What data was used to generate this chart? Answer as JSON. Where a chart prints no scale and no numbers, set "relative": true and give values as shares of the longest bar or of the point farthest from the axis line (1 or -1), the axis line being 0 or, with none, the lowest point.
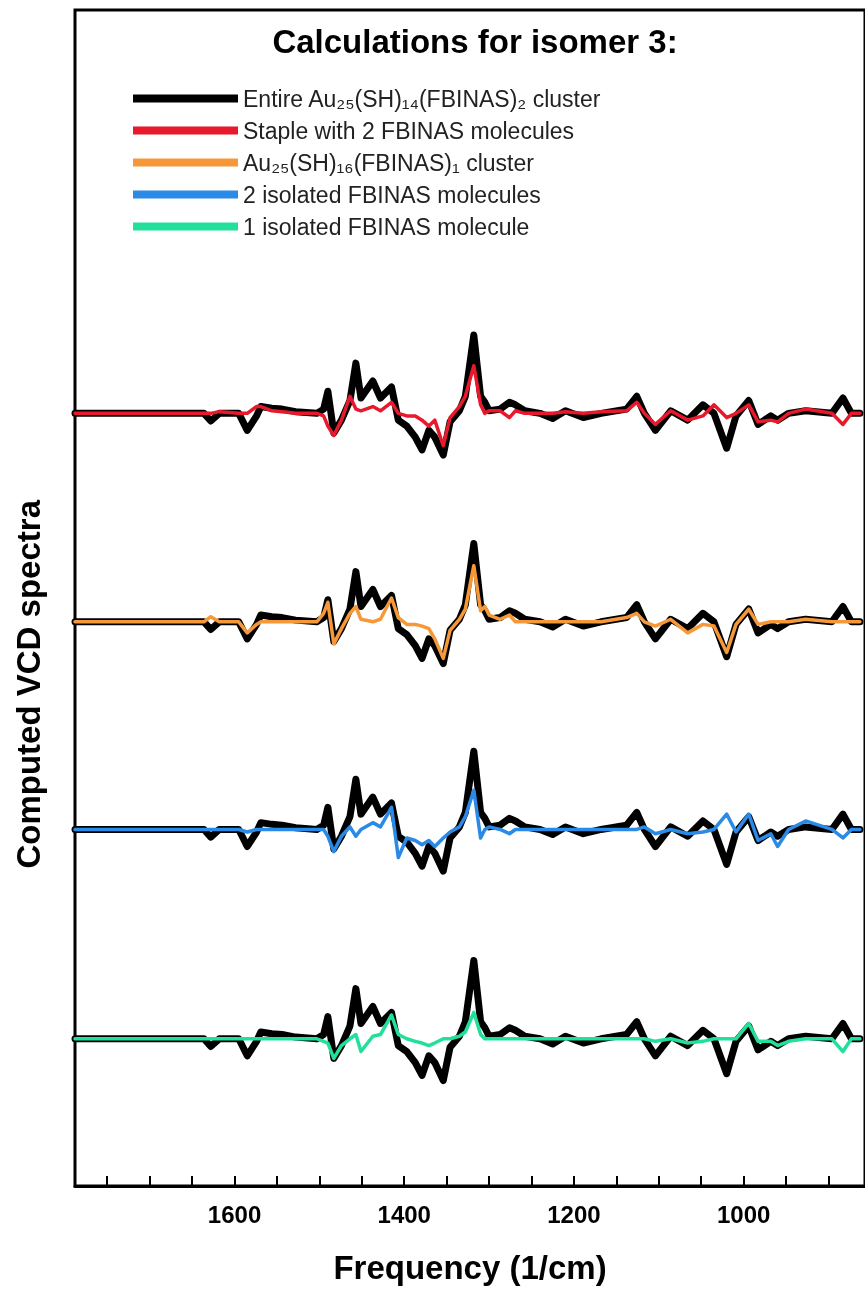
{
  "chart_data": {
    "type": "line",
    "relative": true,
    "legend_title": "Calculations for isomer 3:",
    "xlabel": "Frequency (1/cm)",
    "ylabel": "Computed VCD spectra",
    "legend": "top",
    "xlim": [
      1788,
      857
    ],
    "xticks": [
      {
        "value": 1750,
        "label": null
      },
      {
        "value": 1700,
        "label": null
      },
      {
        "value": 1650,
        "label": null
      },
      1600,
      {
        "value": 1550,
        "label": null
      },
      {
        "value": 1500,
        "label": null
      },
      {
        "value": 1450,
        "label": null
      },
      1400,
      {
        "value": 1350,
        "label": null
      },
      {
        "value": 1300,
        "label": null
      },
      {
        "value": 1250,
        "label": null
      },
      1200,
      {
        "value": 1150,
        "label": null
      },
      {
        "value": 1100,
        "label": null
      },
      {
        "value": 1050,
        "label": null
      },
      1000,
      {
        "value": 950,
        "label": null
      },
      {
        "value": 900,
        "label": null
      }
    ],
    "x": [
      1788,
      1667,
      1636,
      1628,
      1618,
      1595,
      1585,
      1574,
      1569,
      1556,
      1544,
      1528,
      1503,
      1495,
      1490,
      1483,
      1474,
      1464,
      1457,
      1451,
      1437,
      1428,
      1415,
      1407,
      1397,
      1387,
      1379,
      1371,
      1364,
      1354,
      1346,
      1335,
      1328,
      1318,
      1310,
      1305,
      1300,
      1287,
      1276,
      1269,
      1258,
      1240,
      1225,
      1210,
      1189,
      1168,
      1138,
      1126,
      1117,
      1104,
      1086,
      1066,
      1048,
      1035,
      1020,
      1009,
      994,
      983,
      968,
      960,
      947,
      927,
      896,
      883,
      873,
      863
    ],
    "series": [
      {
        "name": "Entire Au₂₅(SH)₁₄(FBINAS)₂ cluster",
        "color": "#000000",
        "values": [
          0.908,
          0.908,
          0.908,
          0.899,
          0.908,
          0.908,
          0.888,
          0.905,
          0.916,
          0.914,
          0.913,
          0.91,
          0.908,
          0.913,
          0.934,
          0.885,
          0.9,
          0.923,
          0.967,
          0.926,
          0.946,
          0.926,
          0.939,
          0.9,
          0.893,
          0.88,
          0.865,
          0.888,
          0.88,
          0.859,
          0.898,
          0.911,
          0.928,
          1.0,
          0.928,
          0.921,
          0.911,
          0.913,
          0.921,
          0.918,
          0.911,
          0.908,
          0.902,
          0.911,
          0.903,
          0.908,
          0.913,
          0.928,
          0.908,
          0.888,
          0.911,
          0.9,
          0.918,
          0.908,
          0.867,
          0.905,
          0.923,
          0.895,
          0.905,
          0.9,
          0.908,
          0.911,
          0.908,
          0.926,
          0.908,
          0.908
        ]
      },
      {
        "color": "#000000",
        "values": [
          0.663,
          0.663,
          0.663,
          0.654,
          0.663,
          0.663,
          0.643,
          0.66,
          0.671,
          0.669,
          0.668,
          0.665,
          0.663,
          0.668,
          0.689,
          0.64,
          0.655,
          0.678,
          0.722,
          0.681,
          0.701,
          0.681,
          0.694,
          0.655,
          0.648,
          0.635,
          0.62,
          0.643,
          0.635,
          0.614,
          0.653,
          0.666,
          0.683,
          0.755,
          0.683,
          0.676,
          0.666,
          0.668,
          0.676,
          0.673,
          0.666,
          0.663,
          0.657,
          0.666,
          0.658,
          0.663,
          0.668,
          0.683,
          0.663,
          0.643,
          0.666,
          0.655,
          0.673,
          0.663,
          0.622,
          0.66,
          0.678,
          0.65,
          0.66,
          0.655,
          0.663,
          0.666,
          0.663,
          0.681,
          0.663,
          0.663
        ]
      },
      {
        "color": "#000000",
        "values": [
          0.419,
          0.419,
          0.419,
          0.41,
          0.419,
          0.419,
          0.399,
          0.416,
          0.427,
          0.425,
          0.424,
          0.421,
          0.419,
          0.424,
          0.445,
          0.396,
          0.411,
          0.434,
          0.478,
          0.437,
          0.457,
          0.437,
          0.45,
          0.411,
          0.404,
          0.391,
          0.376,
          0.399,
          0.391,
          0.37,
          0.409,
          0.422,
          0.439,
          0.511,
          0.439,
          0.432,
          0.422,
          0.424,
          0.432,
          0.429,
          0.422,
          0.419,
          0.413,
          0.422,
          0.414,
          0.419,
          0.424,
          0.439,
          0.419,
          0.399,
          0.422,
          0.411,
          0.429,
          0.419,
          0.378,
          0.416,
          0.434,
          0.406,
          0.416,
          0.411,
          0.419,
          0.422,
          0.419,
          0.437,
          0.419,
          0.419
        ]
      },
      {
        "color": "#000000",
        "values": [
          0.173,
          0.173,
          0.173,
          0.164,
          0.173,
          0.173,
          0.153,
          0.17,
          0.181,
          0.179,
          0.178,
          0.175,
          0.173,
          0.178,
          0.199,
          0.15,
          0.165,
          0.188,
          0.232,
          0.191,
          0.211,
          0.191,
          0.204,
          0.165,
          0.158,
          0.145,
          0.13,
          0.153,
          0.145,
          0.124,
          0.163,
          0.176,
          0.193,
          0.265,
          0.193,
          0.186,
          0.176,
          0.178,
          0.186,
          0.183,
          0.176,
          0.173,
          0.167,
          0.176,
          0.168,
          0.173,
          0.178,
          0.193,
          0.173,
          0.153,
          0.176,
          0.165,
          0.183,
          0.173,
          0.132,
          0.17,
          0.188,
          0.16,
          0.17,
          0.165,
          0.173,
          0.176,
          0.173,
          0.191,
          0.173,
          0.173
        ]
      },
      {
        "name": "Staple with 2 FBINAS molecules",
        "color": "#e8192c",
        "values": [
          0.908,
          0.908,
          0.908,
          0.908,
          0.91,
          0.908,
          0.908,
          0.916,
          0.916,
          0.911,
          0.91,
          0.908,
          0.908,
          0.905,
          0.893,
          0.882,
          0.9,
          0.928,
          0.913,
          0.911,
          0.916,
          0.911,
          0.921,
          0.908,
          0.905,
          0.905,
          0.9,
          0.893,
          0.9,
          0.87,
          0.903,
          0.916,
          0.928,
          0.964,
          0.918,
          0.908,
          0.911,
          0.911,
          0.903,
          0.911,
          0.908,
          0.908,
          0.908,
          0.91,
          0.908,
          0.91,
          0.911,
          0.921,
          0.908,
          0.895,
          0.911,
          0.9,
          0.905,
          0.918,
          0.903,
          0.908,
          0.918,
          0.898,
          0.9,
          0.898,
          0.908,
          0.913,
          0.908,
          0.895,
          0.908,
          0.908
        ]
      },
      {
        "name": "Au₂₅(SH)₁₆(FBINAS)₁ cluster",
        "color": "#f5983a",
        "values": [
          0.663,
          0.663,
          0.663,
          0.669,
          0.663,
          0.663,
          0.65,
          0.66,
          0.663,
          0.663,
          0.663,
          0.663,
          0.663,
          0.673,
          0.686,
          0.637,
          0.655,
          0.673,
          0.681,
          0.666,
          0.663,
          0.666,
          0.691,
          0.668,
          0.66,
          0.66,
          0.658,
          0.655,
          0.643,
          0.62,
          0.653,
          0.666,
          0.678,
          0.729,
          0.676,
          0.681,
          0.671,
          0.666,
          0.671,
          0.663,
          0.663,
          0.663,
          0.663,
          0.663,
          0.663,
          0.663,
          0.668,
          0.673,
          0.663,
          0.658,
          0.666,
          0.65,
          0.66,
          0.658,
          0.627,
          0.66,
          0.678,
          0.66,
          0.663,
          0.663,
          0.663,
          0.666,
          0.663,
          0.663,
          0.663,
          0.663
        ]
      },
      {
        "name": "2 isolated FBINAS molecules",
        "color": "#2a8ae6",
        "values": [
          0.419,
          0.419,
          0.419,
          0.419,
          0.419,
          0.419,
          0.416,
          0.419,
          0.419,
          0.419,
          0.419,
          0.419,
          0.419,
          0.419,
          0.411,
          0.393,
          0.411,
          0.422,
          0.411,
          0.419,
          0.427,
          0.422,
          0.445,
          0.386,
          0.409,
          0.406,
          0.401,
          0.406,
          0.399,
          0.409,
          0.416,
          0.422,
          0.434,
          0.465,
          0.409,
          0.419,
          0.422,
          0.419,
          0.414,
          0.419,
          0.419,
          0.419,
          0.419,
          0.419,
          0.419,
          0.419,
          0.419,
          0.419,
          0.422,
          0.414,
          0.419,
          0.414,
          0.416,
          0.419,
          0.437,
          0.416,
          0.437,
          0.406,
          0.414,
          0.399,
          0.419,
          0.429,
          0.419,
          0.409,
          0.419,
          0.419
        ]
      },
      {
        "name": "1 isolated FBINAS molecule",
        "color": "#22e09a",
        "values": [
          0.173,
          0.173,
          0.173,
          0.173,
          0.173,
          0.173,
          0.173,
          0.173,
          0.173,
          0.173,
          0.173,
          0.173,
          0.173,
          0.17,
          0.168,
          0.15,
          0.165,
          0.173,
          0.178,
          0.158,
          0.176,
          0.178,
          0.201,
          0.178,
          0.173,
          0.17,
          0.168,
          0.165,
          0.168,
          0.173,
          0.173,
          0.176,
          0.181,
          0.204,
          0.178,
          0.173,
          0.173,
          0.173,
          0.173,
          0.173,
          0.173,
          0.173,
          0.173,
          0.173,
          0.173,
          0.173,
          0.173,
          0.173,
          0.173,
          0.17,
          0.173,
          0.168,
          0.17,
          0.173,
          0.173,
          0.173,
          0.191,
          0.17,
          0.17,
          0.165,
          0.17,
          0.173,
          0.173,
          0.158,
          0.173,
          0.173
        ]
      }
    ]
  }
}
